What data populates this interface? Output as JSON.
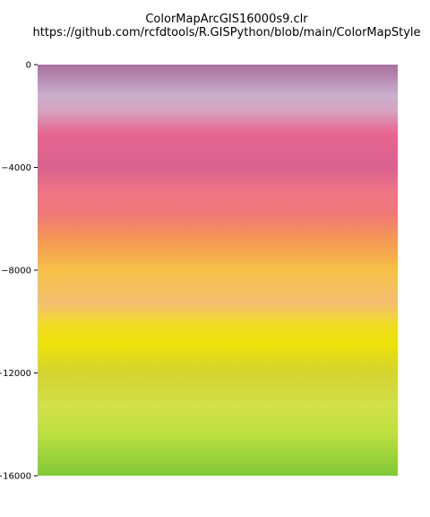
{
  "chart_data": {
    "type": "heatmap",
    "title_lines": [
      "ColorMapArcGIS16000s9.clr",
      "https://github.com/rcfdtools/R.GISPython/blob/main/ColorMapStyle"
    ],
    "xlabel": "",
    "ylabel": "",
    "ylim": [
      0,
      -16000
    ],
    "y_ticks": [
      {
        "value": 0,
        "label": "0"
      },
      {
        "value": -4000,
        "label": "−4000"
      },
      {
        "value": -8000,
        "label": "−8000"
      },
      {
        "value": -12000,
        "label": "−12000"
      },
      {
        "value": -16000,
        "label": "−16000"
      }
    ],
    "grid": false,
    "color_stops": [
      {
        "value": 0,
        "color": "#a86f9e"
      },
      {
        "value": -1200,
        "color": "#c9b0cc"
      },
      {
        "value": -1800,
        "color": "#d6a2c0"
      },
      {
        "value": -2700,
        "color": "#e86590"
      },
      {
        "value": -4000,
        "color": "#d8628f"
      },
      {
        "value": -5000,
        "color": "#ef7584"
      },
      {
        "value": -5800,
        "color": "#f07878"
      },
      {
        "value": -6900,
        "color": "#f59a52"
      },
      {
        "value": -8000,
        "color": "#f6c048"
      },
      {
        "value": -9300,
        "color": "#f4bf70"
      },
      {
        "value": -10200,
        "color": "#f0de1e"
      },
      {
        "value": -10900,
        "color": "#ece108"
      },
      {
        "value": -12000,
        "color": "#d4d430"
      },
      {
        "value": -13300,
        "color": "#d2e04a"
      },
      {
        "value": -14300,
        "color": "#bfe040"
      },
      {
        "value": -16000,
        "color": "#80c838"
      }
    ]
  }
}
